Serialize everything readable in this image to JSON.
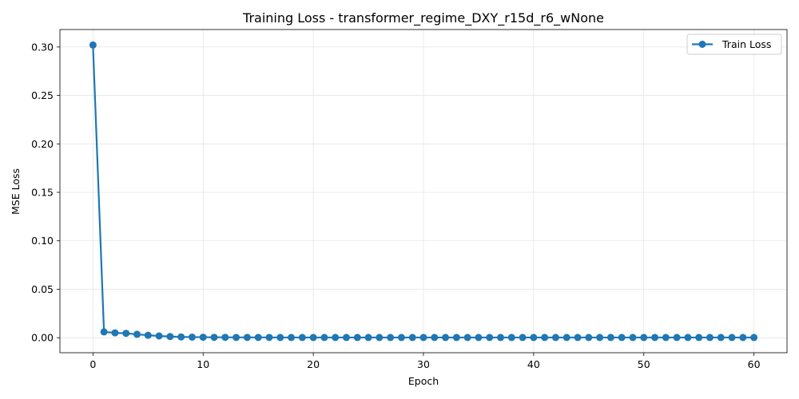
{
  "chart_data": {
    "type": "line",
    "title": "Training Loss - transformer_regime_DXY_r15d_r6_wNone",
    "xlabel": "Epoch",
    "ylabel": "MSE Loss",
    "xlim": [
      -3,
      63
    ],
    "ylim": [
      -0.0155,
      0.318
    ],
    "xticks": [
      0,
      10,
      20,
      30,
      40,
      50,
      60
    ],
    "yticks": [
      0.0,
      0.05,
      0.1,
      0.15,
      0.2,
      0.25,
      0.3
    ],
    "ytick_labels": [
      "0.00",
      "0.05",
      "0.10",
      "0.15",
      "0.20",
      "0.25",
      "0.30"
    ],
    "grid": true,
    "legend_position": "top-right",
    "series": [
      {
        "name": "Train Loss",
        "color": "#1f77b4",
        "marker": "circle",
        "x": [
          0,
          1,
          2,
          3,
          4,
          5,
          6,
          7,
          8,
          9,
          10,
          11,
          12,
          13,
          14,
          15,
          16,
          17,
          18,
          19,
          20,
          21,
          22,
          23,
          24,
          25,
          26,
          27,
          28,
          29,
          30,
          31,
          32,
          33,
          34,
          35,
          36,
          37,
          38,
          39,
          40,
          41,
          42,
          43,
          44,
          45,
          46,
          47,
          48,
          49,
          50,
          51,
          52,
          53,
          54,
          55,
          56,
          57,
          58,
          59,
          60
        ],
        "values": [
          0.302,
          0.006,
          0.005,
          0.0045,
          0.0035,
          0.0025,
          0.0018,
          0.0012,
          0.0008,
          0.0006,
          0.0005,
          0.0004,
          0.0004,
          0.0003,
          0.0003,
          0.0003,
          0.0003,
          0.0002,
          0.0002,
          0.0002,
          0.0002,
          0.0002,
          0.0002,
          0.0002,
          0.0002,
          0.0002,
          0.0002,
          0.0002,
          0.0002,
          0.0002,
          0.0002,
          0.0002,
          0.0002,
          0.0002,
          0.0002,
          0.0002,
          0.0002,
          0.0002,
          0.0002,
          0.0002,
          0.0002,
          0.0002,
          0.0002,
          0.0002,
          0.0002,
          0.0002,
          0.0002,
          0.0002,
          0.0002,
          0.0002,
          0.0002,
          0.0002,
          0.0002,
          0.0002,
          0.0002,
          0.0002,
          0.0002,
          0.0002,
          0.0002,
          0.0002,
          0.0002
        ]
      }
    ]
  }
}
